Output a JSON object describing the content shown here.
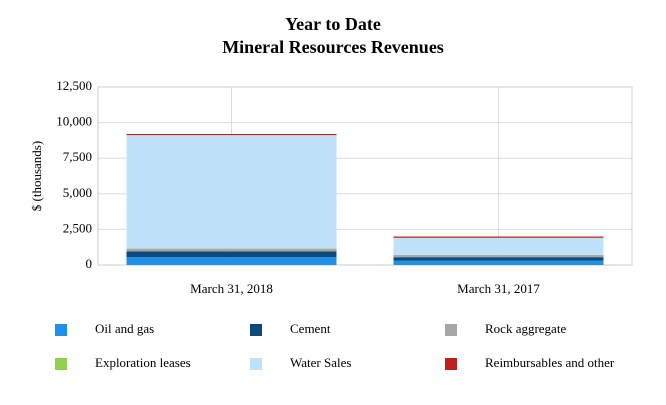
{
  "chart_data": {
    "type": "stacked_bar",
    "title": "Year to Date",
    "subtitle": "Mineral Resources Revenues",
    "y_label": "$ (thousands)",
    "categories": [
      "March 31, 2018",
      "March 31, 2017"
    ],
    "series": [
      {
        "name": "Oil and gas",
        "color": "#1e90e8",
        "values": [
          550,
          300
        ]
      },
      {
        "name": "Cement",
        "color": "#0b4a7a",
        "values": [
          400,
          250
        ]
      },
      {
        "name": "Rock aggregate",
        "color": "#a6a6a6",
        "values": [
          200,
          150
        ]
      },
      {
        "name": "Exploration leases",
        "color": "#92d050",
        "values": [
          20,
          10
        ]
      },
      {
        "name": "Water Sales",
        "color": "#bfe2fb",
        "values": [
          7950,
          1200
        ]
      },
      {
        "name": "Reimbursables and other",
        "color": "#c0201a",
        "values": [
          80,
          90
        ]
      }
    ],
    "ylim": [
      0,
      12500
    ],
    "yticks": [
      0,
      {
        "value": 2500,
        "label": "2,500"
      },
      {
        "value": 5000,
        "label": "5,000"
      },
      {
        "value": 7500,
        "label": "7,500"
      },
      {
        "value": 10000,
        "label": "10,000"
      },
      {
        "value": 12500,
        "label": "12,500"
      }
    ],
    "grid": true
  }
}
